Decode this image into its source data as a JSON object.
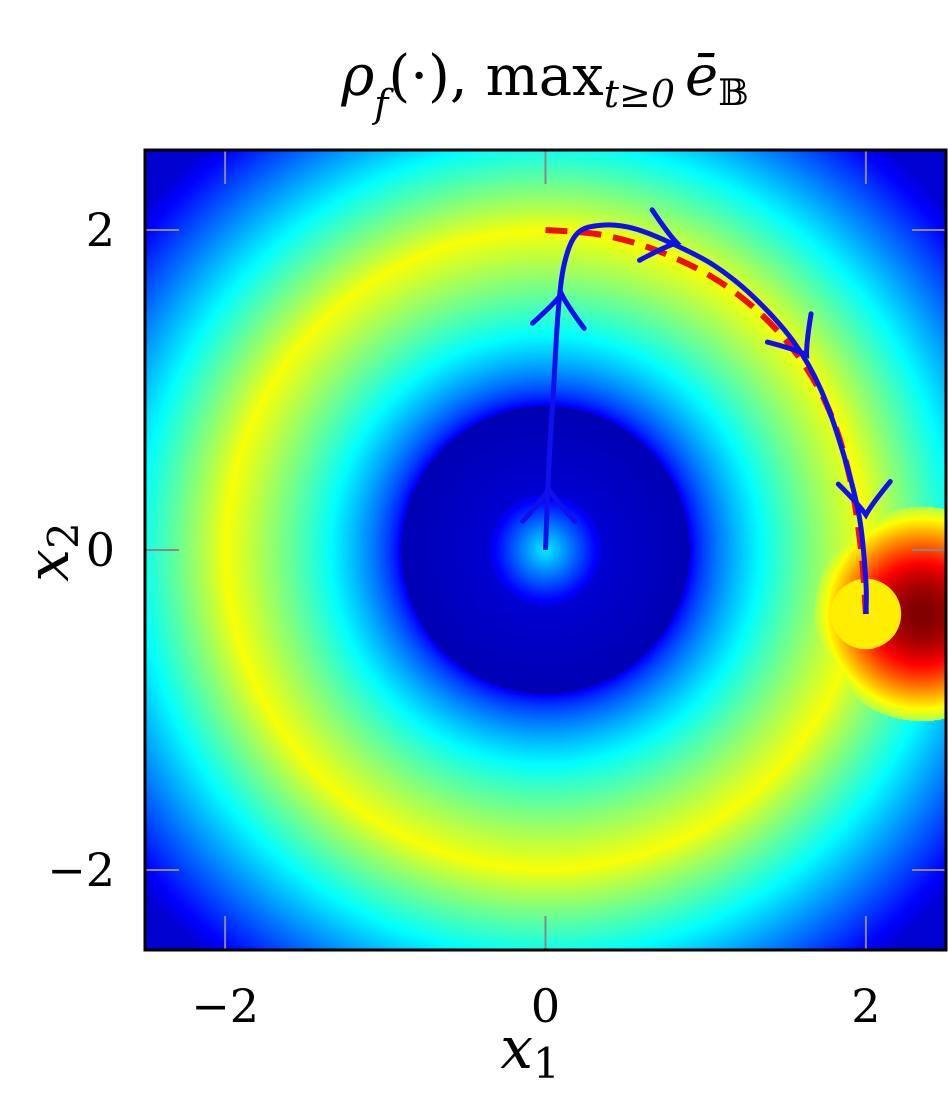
{
  "chart_data": {
    "type": "heatmap",
    "title": "ρ_f(·),  max_{t≥0} ē_𝔹",
    "title_parts": {
      "rho": "ρ",
      "rho_sub": "f",
      "arg": "(·),",
      "max": "max",
      "max_sub": "t≥0",
      "e": "ē",
      "e_sub": "𝔹"
    },
    "xlabel": "x",
    "xlabel_sub": "1",
    "ylabel": "x",
    "ylabel_sub": "2",
    "xlim": [
      -2.5,
      2.5
    ],
    "ylim": [
      -2.5,
      2.5
    ],
    "x_ticks": [
      {
        "value": -2,
        "label": "−2"
      },
      {
        "value": 0,
        "label": "0"
      },
      {
        "value": 2,
        "label": "2"
      }
    ],
    "y_ticks": [
      {
        "value": 2,
        "label": "2"
      },
      {
        "value": 0,
        "label": "0"
      },
      {
        "value": -2,
        "label": "−2"
      }
    ],
    "colormap": "jet",
    "heatmap_model": {
      "ring_center": [
        0,
        0
      ],
      "ring_radius": 2.0,
      "ring_width": 0.8,
      "ring_peak_level": 0.62,
      "hotspot_center": [
        2.35,
        -0.4
      ],
      "hotspot_level": 1.0
    },
    "target": {
      "center": [
        2.0,
        -0.4
      ],
      "radius": 0.22,
      "color": "#ffee00"
    },
    "series": [
      {
        "style": "solid",
        "color": "#1010ee",
        "points": [
          [
            0.0,
            0.0
          ],
          [
            0.02,
            0.5
          ],
          [
            0.05,
            1.0
          ],
          [
            0.08,
            1.5
          ],
          [
            0.12,
            1.8
          ],
          [
            0.2,
            1.98
          ],
          [
            0.35,
            2.03
          ],
          [
            0.55,
            2.01
          ],
          [
            0.78,
            1.92
          ],
          [
            1.05,
            1.78
          ],
          [
            1.3,
            1.58
          ],
          [
            1.55,
            1.3
          ],
          [
            1.72,
            1.0
          ],
          [
            1.86,
            0.6
          ],
          [
            1.96,
            0.2
          ],
          [
            2.0,
            -0.2
          ],
          [
            2.0,
            -0.4
          ]
        ],
        "arrows": [
          {
            "at": [
              0.02,
              0.38
            ],
            "direction": [
              0,
              1
            ]
          },
          {
            "at": [
              0.1,
              1.6
            ],
            "direction": [
              0.1,
              1
            ]
          },
          {
            "at": [
              0.82,
              1.92
            ],
            "direction": [
              1,
              -0.25
            ]
          },
          {
            "at": [
              1.63,
              1.22
            ],
            "direction": [
              0.55,
              -0.85
            ]
          },
          {
            "at": [
              2.0,
              0.22
            ],
            "direction": [
              0.05,
              -1
            ]
          }
        ]
      },
      {
        "style": "dashed",
        "color": "#ee1010",
        "points": [
          [
            0.0,
            2.0
          ],
          [
            0.35,
            1.97
          ],
          [
            0.7,
            1.87
          ],
          [
            1.05,
            1.7
          ],
          [
            1.35,
            1.47
          ],
          [
            1.6,
            1.18
          ],
          [
            1.78,
            0.85
          ],
          [
            1.9,
            0.45
          ],
          [
            1.97,
            0.0
          ],
          [
            2.0,
            -0.4
          ]
        ]
      }
    ]
  }
}
